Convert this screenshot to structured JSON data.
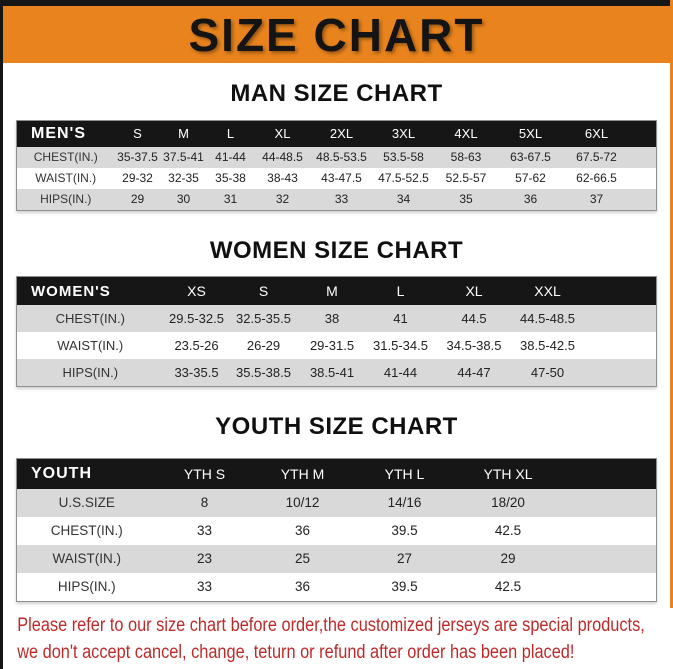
{
  "page": {
    "title": "SIZE CHART",
    "disclaimer_line1": "Please refer to our size chart before order,the customized jerseys are special products,",
    "disclaimer_line2": "we don't accept cancel, change, teturn or refund after order has been placed!"
  },
  "colors": {
    "banner_orange": "#E8831D",
    "header_black": "#161616",
    "stripe_gray": "#D9D9D9",
    "disclaimer_red": "#BE2A2A"
  },
  "sections": [
    {
      "heading": "MAN SIZE CHART",
      "corner_label": "MEN'S",
      "columns": [
        "S",
        "M",
        "L",
        "XL",
        "2XL",
        "3XL",
        "4XL",
        "5XL",
        "6XL"
      ],
      "rows": [
        {
          "label": "CHEST(IN.)",
          "values": [
            "35-37.5",
            "37.5-41",
            "41-44",
            "44-48.5",
            "48.5-53.5",
            "53.5-58",
            "58-63",
            "63-67.5",
            "67.5-72"
          ]
        },
        {
          "label": "WAIST(IN.)",
          "values": [
            "29-32",
            "32-35",
            "35-38",
            "38-43",
            "43-47.5",
            "47.5-52.5",
            "52.5-57",
            "57-62",
            "62-66.5"
          ]
        },
        {
          "label": "HIPS(IN.)",
          "values": [
            "29",
            "30",
            "31",
            "32",
            "33",
            "34",
            "35",
            "36",
            "37"
          ]
        }
      ]
    },
    {
      "heading": "WOMEN SIZE CHART",
      "corner_label": "WOMEN'S",
      "columns": [
        "XS",
        "S",
        "M",
        "L",
        "XL",
        "XXL"
      ],
      "rows": [
        {
          "label": "CHEST(IN.)",
          "values": [
            "29.5-32.5",
            "32.5-35.5",
            "38",
            "41",
            "44.5",
            "44.5-48.5"
          ]
        },
        {
          "label": "WAIST(IN.)",
          "values": [
            "23.5-26",
            "26-29",
            "29-31.5",
            "31.5-34.5",
            "34.5-38.5",
            "38.5-42.5"
          ]
        },
        {
          "label": "HIPS(IN.)",
          "values": [
            "33-35.5",
            "35.5-38.5",
            "38.5-41",
            "41-44",
            "44-47",
            "47-50"
          ]
        }
      ]
    },
    {
      "heading": "YOUTH SIZE CHART",
      "corner_label": "YOUTH",
      "columns": [
        "YTH S",
        "YTH M",
        "YTH L",
        "YTH XL"
      ],
      "rows": [
        {
          "label": "U.S.SIZE",
          "values": [
            "8",
            "10/12",
            "14/16",
            "18/20"
          ]
        },
        {
          "label": "CHEST(IN.)",
          "values": [
            "33",
            "36",
            "39.5",
            "42.5"
          ]
        },
        {
          "label": "WAIST(IN.)",
          "values": [
            "23",
            "25",
            "27",
            "29"
          ]
        },
        {
          "label": "HIPS(IN.)",
          "values": [
            "33",
            "36",
            "39.5",
            "42.5"
          ]
        }
      ]
    }
  ]
}
